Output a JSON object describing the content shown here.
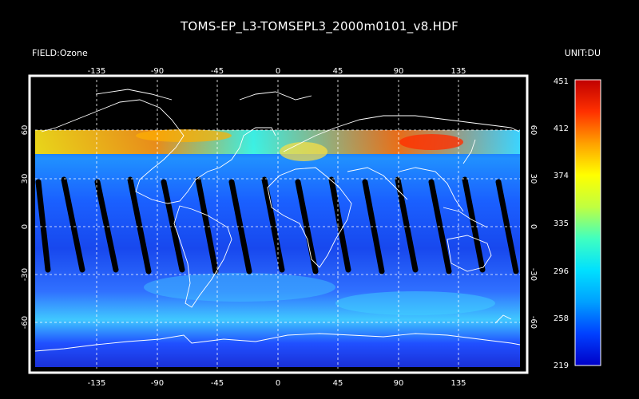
{
  "title": "TOMS-EP_L3-TOMSEPL3_2000m0101_v8.HDF",
  "field_label": "FIELD:Ozone",
  "unit_label": "UNIT:DU",
  "map": {
    "lon_ticks": [
      "-135",
      "-90",
      "-45",
      "0",
      "45",
      "90",
      "135"
    ],
    "lat_ticks": [
      "60",
      "30",
      "0",
      "-30",
      "-60"
    ],
    "lon_range": [
      -180,
      180
    ],
    "lat_range": [
      -90,
      90
    ],
    "no_data_above_lat": 60,
    "grid": "dashed"
  },
  "colorbar": {
    "ticks": [
      "451",
      "412",
      "374",
      "335",
      "296",
      "258",
      "219"
    ],
    "min": 219,
    "max": 451,
    "colors": [
      "#0000c8",
      "#0040ff",
      "#00a0ff",
      "#00e0ff",
      "#40ffc0",
      "#c0ff40",
      "#ffff00",
      "#ffa000",
      "#ff3000",
      "#c00000"
    ]
  }
}
